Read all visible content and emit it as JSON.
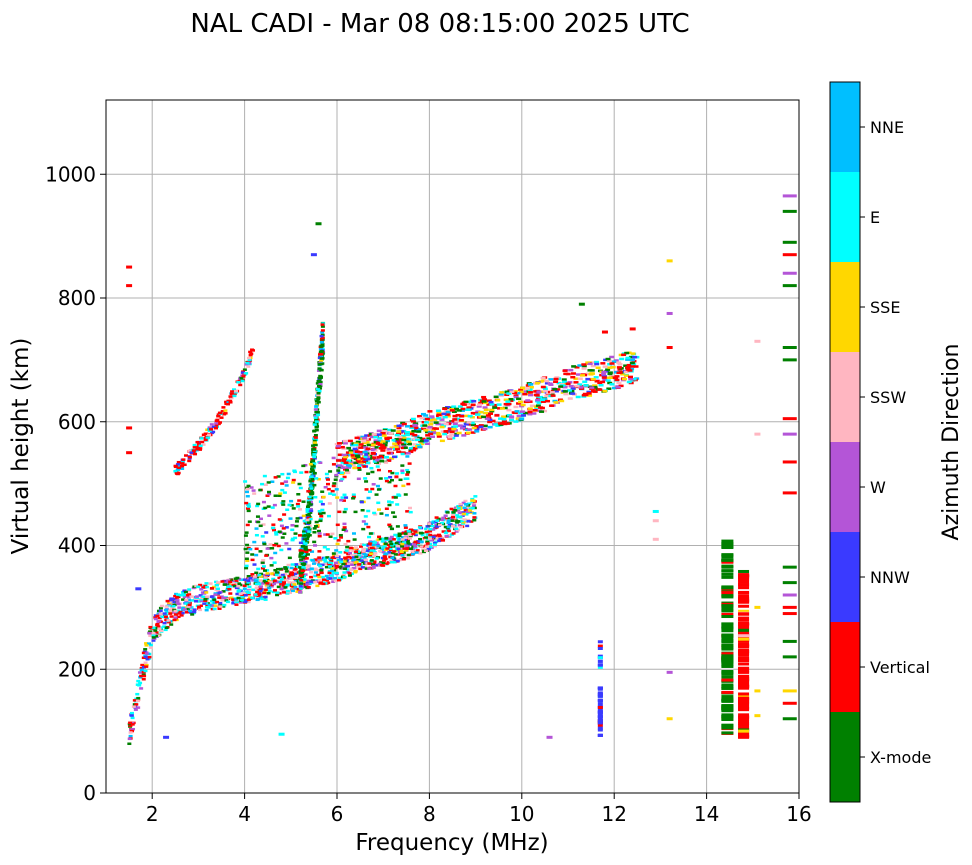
{
  "chart_data": {
    "type": "scatter",
    "title": "NAL CADI - Mar 08 08:15:00 2025 UTC",
    "xlabel": "Frequency (MHz)",
    "ylabel": "Virtual height (km)",
    "xlim": [
      1,
      16
    ],
    "ylim": [
      0,
      1120
    ],
    "grid": true,
    "xticks": [
      2,
      4,
      6,
      8,
      10,
      12,
      14,
      16
    ],
    "xtick_labels": [
      "2",
      "4",
      "6",
      "8",
      "10",
      "12",
      "14",
      "16"
    ],
    "yticks": [
      0,
      200,
      400,
      600,
      800,
      1000
    ],
    "ytick_labels": [
      "0",
      "200",
      "400",
      "600",
      "800",
      "1000"
    ],
    "colorbar": {
      "label": "Azimuth Direction",
      "categories": [
        "X-mode",
        "Vertical",
        "NNW",
        "W",
        "SSW",
        "SSE",
        "E",
        "NNE"
      ],
      "colors": [
        "#008000",
        "#ff0000",
        "#3a3aff",
        "#b455d7",
        "#ffb6c1",
        "#ffd700",
        "#00ffff",
        "#00bfff"
      ]
    },
    "traces": [
      {
        "name": "low-frequency trace",
        "points": [
          [
            1.5,
            100
          ],
          [
            1.6,
            130
          ],
          [
            1.7,
            160
          ],
          [
            1.8,
            200
          ],
          [
            1.9,
            230
          ],
          [
            2.0,
            260
          ],
          [
            2.2,
            280
          ],
          [
            2.5,
            300
          ],
          [
            3.0,
            315
          ],
          [
            3.5,
            320
          ],
          [
            4.0,
            330
          ],
          [
            4.5,
            335
          ],
          [
            5.0,
            345
          ],
          [
            5.5,
            355
          ],
          [
            6.0,
            365
          ],
          [
            6.5,
            380
          ],
          [
            7.0,
            390
          ],
          [
            7.5,
            400
          ],
          [
            8.0,
            415
          ],
          [
            8.5,
            440
          ],
          [
            9.0,
            460
          ]
        ]
      },
      {
        "name": "upper oblique trace",
        "points": [
          [
            2.5,
            520
          ],
          [
            3.0,
            560
          ],
          [
            3.5,
            610
          ],
          [
            4.0,
            680
          ],
          [
            4.2,
            720
          ]
        ]
      },
      {
        "name": "mid trace",
        "points": [
          [
            6.0,
            540
          ],
          [
            7.0,
            560
          ],
          [
            8.0,
            590
          ],
          [
            9.0,
            610
          ],
          [
            10.0,
            630
          ],
          [
            11.0,
            660
          ],
          [
            12.0,
            680
          ],
          [
            12.5,
            690
          ]
        ]
      },
      {
        "name": "vertical column 5.5MHz",
        "points": [
          [
            5.2,
            350
          ],
          [
            5.4,
            450
          ],
          [
            5.5,
            550
          ],
          [
            5.6,
            650
          ],
          [
            5.7,
            740
          ]
        ]
      },
      {
        "name": "column 14.5MHz",
        "points": [
          [
            14.5,
            90
          ],
          [
            14.5,
            410
          ]
        ]
      },
      {
        "name": "column 14.8MHz",
        "points": [
          [
            14.8,
            90
          ],
          [
            14.8,
            360
          ]
        ]
      },
      {
        "name": "column 11.7MHz",
        "points": [
          [
            11.7,
            90
          ],
          [
            11.7,
            240
          ]
        ]
      }
    ]
  }
}
